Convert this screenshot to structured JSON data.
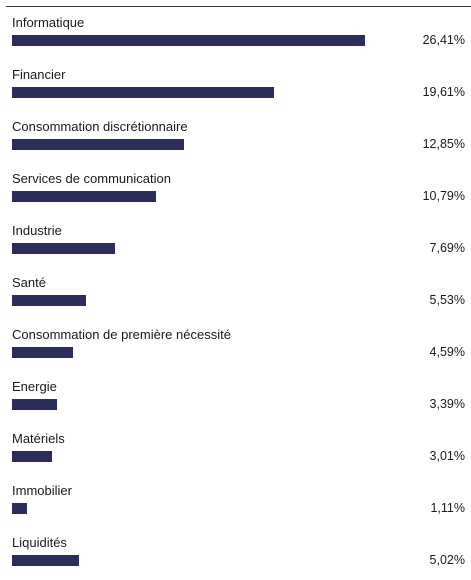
{
  "chart_data": {
    "type": "bar",
    "orientation": "horizontal",
    "categories": [
      "Informatique",
      "Financier",
      "Consommation discrétionnaire",
      "Services de communication",
      "Industrie",
      "Santé",
      "Consommation de première nécessité",
      "Energie",
      "Matériels",
      "Immobilier",
      "Liquidités"
    ],
    "values": [
      26.41,
      19.61,
      12.85,
      10.79,
      7.69,
      5.53,
      4.59,
      3.39,
      3.01,
      1.11,
      5.02
    ],
    "value_labels": [
      "26,41%",
      "19,61%",
      "12,85%",
      "10,79%",
      "7,69%",
      "5,53%",
      "4,59%",
      "3,39%",
      "3,01%",
      "1,11%",
      "5,02%"
    ],
    "title": "",
    "xlabel": "",
    "ylabel": "",
    "xlim": [
      0,
      26.41
    ],
    "grid": false,
    "legend": "none",
    "bar_color": "#2b2d5c"
  }
}
